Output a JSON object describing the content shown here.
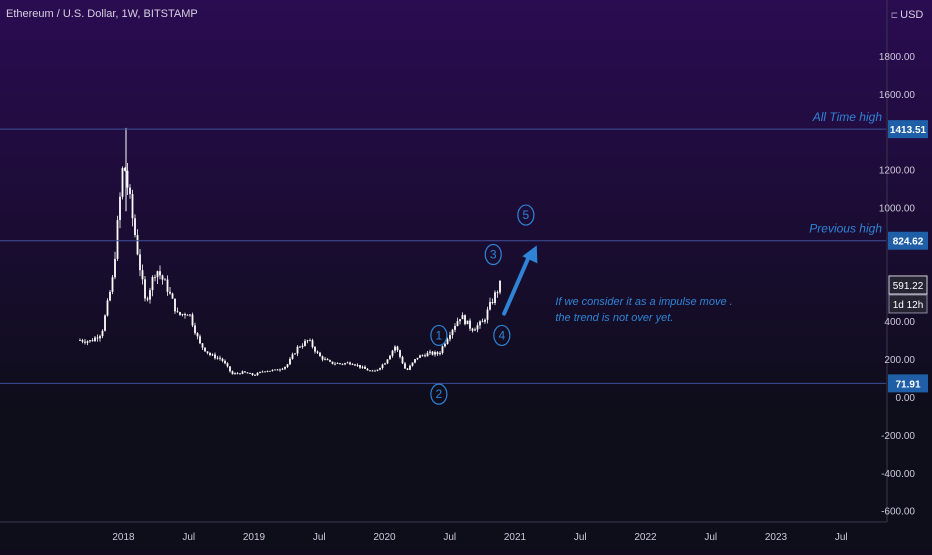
{
  "header": {
    "symbol_title": "Ethereum / U.S. Dollar, 1W, BITSTAMP",
    "currency": "USD",
    "currency_icon": "chevron-icon"
  },
  "colors": {
    "bg_top": "#2a0c52",
    "bg_bottom": "#0e0d1a",
    "candle": "#ffffff",
    "line": "#3d4f9a",
    "annotation": "#2f84d6",
    "label_bg": "#1f5fa8",
    "axis_text": "#cfc8dc"
  },
  "chart_data": {
    "type": "candlestick",
    "title": "Ethereum / U.S. Dollar, 1W, BITSTAMP",
    "y_axis_ticks": [
      -600,
      -400,
      -200,
      0,
      200,
      400,
      1000,
      1200,
      1600,
      1800
    ],
    "y_axis_tick_labels": [
      "-600.00",
      "-400.00",
      "-200.00",
      "0.00",
      "200.00",
      "400.00",
      "1000.00",
      "1200.00",
      "1600.00",
      "1800.00"
    ],
    "x_axis_labels": [
      "2018",
      "Jul",
      "2019",
      "Jul",
      "2020",
      "Jul",
      "2021",
      "Jul",
      "2022",
      "Jul",
      "2023",
      "Jul"
    ],
    "price_points": [
      [
        "2017-09",
        300
      ],
      [
        "2017-10",
        295
      ],
      [
        "2017-11",
        340
      ],
      [
        "2017-12",
        620
      ],
      [
        "2018-01",
        1250
      ],
      [
        "2018-02",
        880
      ],
      [
        "2018-03",
        500
      ],
      [
        "2018-04",
        680
      ],
      [
        "2018-05",
        580
      ],
      [
        "2018-06",
        430
      ],
      [
        "2018-07",
        450
      ],
      [
        "2018-08",
        280
      ],
      [
        "2018-09",
        220
      ],
      [
        "2018-10",
        200
      ],
      [
        "2018-11",
        120
      ],
      [
        "2018-12",
        130
      ],
      [
        "2019-01",
        115
      ],
      [
        "2019-02",
        140
      ],
      [
        "2019-03",
        140
      ],
      [
        "2019-04",
        165
      ],
      [
        "2019-05",
        260
      ],
      [
        "2019-06",
        300
      ],
      [
        "2019-07",
        215
      ],
      [
        "2019-08",
        180
      ],
      [
        "2019-09",
        175
      ],
      [
        "2019-10",
        182
      ],
      [
        "2019-11",
        152
      ],
      [
        "2019-12",
        130
      ],
      [
        "2020-01",
        180
      ],
      [
        "2020-02",
        270
      ],
      [
        "2020-03",
        135
      ],
      [
        "2020-04",
        210
      ],
      [
        "2020-05",
        230
      ],
      [
        "2020-06",
        228
      ],
      [
        "2020-07",
        340
      ],
      [
        "2020-08",
        430
      ],
      [
        "2020-09",
        360
      ],
      [
        "2020-10",
        390
      ],
      [
        "2020-11",
        520
      ],
      [
        "2020-11-20",
        591
      ]
    ],
    "horizontal_levels": [
      {
        "price": 1413.51,
        "label": "1413.51",
        "note": "All Time high"
      },
      {
        "price": 824.62,
        "label": "824.62",
        "note": "Previous high"
      },
      {
        "price": 71.91,
        "label": "71.91",
        "note": ""
      }
    ],
    "current_price": {
      "price": 591.22,
      "label": "591.22",
      "countdown": "1d 12h"
    },
    "wave_labels": [
      {
        "label": "1",
        "date": "2020-06",
        "price": 325
      },
      {
        "label": "2",
        "date": "2020-06",
        "price": 15
      },
      {
        "label": "3",
        "date": "2020-11",
        "price": 752
      },
      {
        "label": "4",
        "date": "2020-11-25",
        "price": 325
      },
      {
        "label": "5",
        "date": "2021-02",
        "price": 960
      }
    ],
    "projection_arrow": {
      "from": [
        "2020-12",
        440
      ],
      "to": [
        "2021-03",
        800
      ]
    },
    "annotation_lines": [
      "If we consider it as a impulse move .",
      "the trend is not over yet."
    ]
  }
}
